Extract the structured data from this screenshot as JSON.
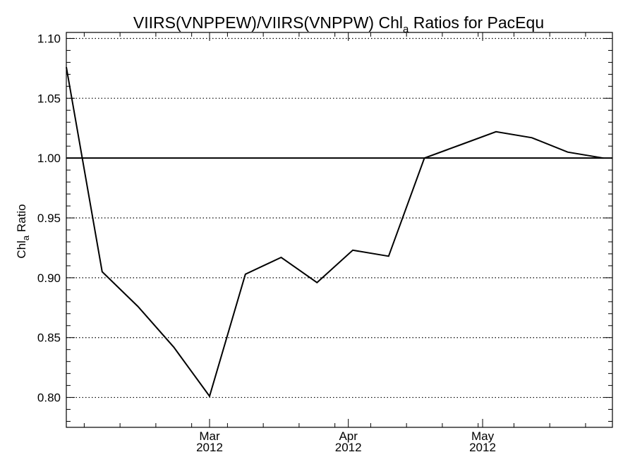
{
  "chart_data": {
    "type": "line",
    "title_main": "VIIRS(VNPPEW)/VIIRS(VNPPW)  Chl",
    "title_sub": "a",
    "title_rest": " Ratios for PacEqu",
    "ylabel_main": "Chl",
    "ylabel_sub": "a",
    "ylabel_rest": " Ratio",
    "ylim": [
      0.775,
      1.105
    ],
    "yticks": [
      {
        "value": 0.8,
        "label": "0.80"
      },
      {
        "value": 0.85,
        "label": "0.85"
      },
      {
        "value": 0.9,
        "label": "0.90"
      },
      {
        "value": 0.95,
        "label": "0.95"
      },
      {
        "value": 1.0,
        "label": "1.00"
      },
      {
        "value": 1.05,
        "label": "1.05"
      },
      {
        "value": 1.1,
        "label": "1.10"
      }
    ],
    "xlim": [
      "2012-01-29",
      "2012-05-30"
    ],
    "xticks": [
      {
        "date": "2012-03-01",
        "month": "Mar",
        "year": "2012"
      },
      {
        "date": "2012-04-01",
        "month": "Apr",
        "year": "2012"
      },
      {
        "date": "2012-05-01",
        "month": "May",
        "year": "2012"
      }
    ],
    "x_minor_ticks": [
      "2012-02-02",
      "2012-02-10",
      "2012-02-18",
      "2012-02-26",
      "2012-03-05",
      "2012-03-13",
      "2012-03-21",
      "2012-03-29",
      "2012-04-06",
      "2012-04-14",
      "2012-04-22",
      "2012-04-30",
      "2012-05-08",
      "2012-05-16",
      "2012-05-24"
    ],
    "reference_line": 1.0,
    "grid": "horizontal dotted",
    "series": [
      {
        "color": "#000000",
        "x": [
          "2012-01-29",
          "2012-02-06",
          "2012-02-14",
          "2012-02-22",
          "2012-03-01",
          "2012-03-09",
          "2012-03-17",
          "2012-03-25",
          "2012-04-02",
          "2012-04-10",
          "2012-04-18",
          "2012-04-26",
          "2012-05-04",
          "2012-05-12",
          "2012-05-20",
          "2012-05-28"
        ],
        "values": [
          1.076,
          0.905,
          0.876,
          0.842,
          0.801,
          0.903,
          0.917,
          0.896,
          0.923,
          0.918,
          1.0,
          1.011,
          1.022,
          1.017,
          1.005,
          1.0
        ]
      }
    ]
  }
}
